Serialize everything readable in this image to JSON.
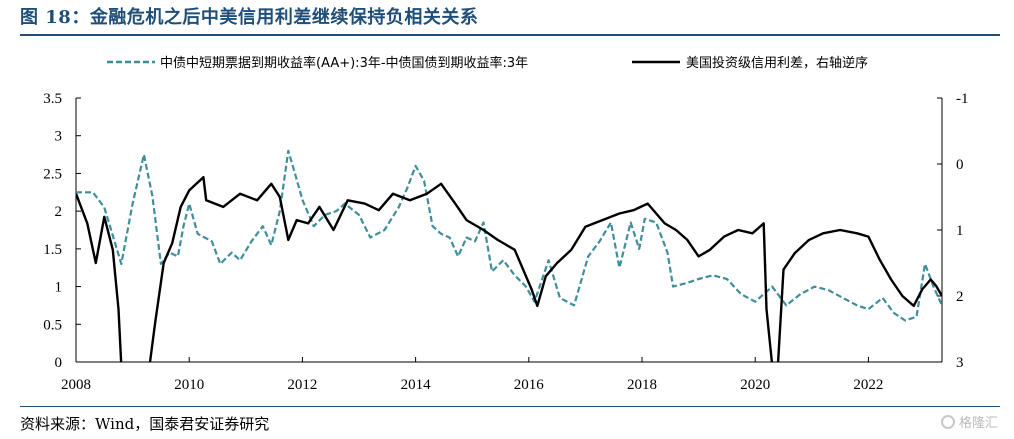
{
  "figure": {
    "title": "图 18：金融危机之后中美信用利差继续保持负相关关系",
    "source": "资料来源：Wind，国泰君安证券研究",
    "watermark": "格隆汇"
  },
  "chart_data": {
    "type": "line",
    "x_ticks": [
      "2008",
      "2010",
      "2012",
      "2014",
      "2016",
      "2018",
      "2020",
      "2022"
    ],
    "xlim": [
      2008.0,
      2023.3
    ],
    "y_left": {
      "ylim": [
        0,
        3.5
      ],
      "ticks": [
        "0",
        "0.5",
        "1",
        "1.5",
        "2",
        "2.5",
        "3",
        "3.5"
      ]
    },
    "y_right": {
      "ylim": [
        -1,
        3
      ],
      "inverted": true,
      "ticks": [
        "-1",
        "0",
        "1",
        "2",
        "3"
      ]
    },
    "legend_position": "top",
    "grid": false,
    "series": [
      {
        "name": "中债中短期票据到期收益率(AA+):3年-中债国债到期收益率:3年",
        "axis": "left",
        "style": "dashed",
        "color": "#3e8e9b",
        "points": [
          [
            2008.0,
            2.25
          ],
          [
            2008.3,
            2.25
          ],
          [
            2008.5,
            2.05
          ],
          [
            2008.6,
            1.8
          ],
          [
            2008.8,
            1.3
          ],
          [
            2009.0,
            2.1
          ],
          [
            2009.2,
            2.75
          ],
          [
            2009.35,
            2.2
          ],
          [
            2009.5,
            1.3
          ],
          [
            2009.65,
            1.45
          ],
          [
            2009.8,
            1.4
          ],
          [
            2009.9,
            1.8
          ],
          [
            2010.0,
            2.1
          ],
          [
            2010.15,
            1.7
          ],
          [
            2010.4,
            1.6
          ],
          [
            2010.55,
            1.3
          ],
          [
            2010.75,
            1.45
          ],
          [
            2010.9,
            1.35
          ],
          [
            2011.1,
            1.6
          ],
          [
            2011.3,
            1.8
          ],
          [
            2011.45,
            1.55
          ],
          [
            2011.6,
            2.0
          ],
          [
            2011.75,
            2.8
          ],
          [
            2011.85,
            2.55
          ],
          [
            2012.0,
            2.15
          ],
          [
            2012.2,
            1.8
          ],
          [
            2012.4,
            1.95
          ],
          [
            2012.6,
            2.0
          ],
          [
            2012.75,
            2.1
          ],
          [
            2013.0,
            1.95
          ],
          [
            2013.2,
            1.65
          ],
          [
            2013.45,
            1.75
          ],
          [
            2013.7,
            2.05
          ],
          [
            2013.85,
            2.3
          ],
          [
            2014.0,
            2.6
          ],
          [
            2014.15,
            2.4
          ],
          [
            2014.3,
            1.8
          ],
          [
            2014.45,
            1.7
          ],
          [
            2014.6,
            1.65
          ],
          [
            2014.75,
            1.4
          ],
          [
            2014.9,
            1.65
          ],
          [
            2015.05,
            1.6
          ],
          [
            2015.2,
            1.85
          ],
          [
            2015.35,
            1.2
          ],
          [
            2015.55,
            1.35
          ],
          [
            2015.75,
            1.15
          ],
          [
            2015.95,
            1.0
          ],
          [
            2016.1,
            0.8
          ],
          [
            2016.35,
            1.35
          ],
          [
            2016.55,
            0.85
          ],
          [
            2016.8,
            0.75
          ],
          [
            2017.05,
            1.4
          ],
          [
            2017.25,
            1.6
          ],
          [
            2017.45,
            1.85
          ],
          [
            2017.6,
            1.25
          ],
          [
            2017.8,
            1.85
          ],
          [
            2017.95,
            1.5
          ],
          [
            2018.05,
            1.9
          ],
          [
            2018.25,
            1.85
          ],
          [
            2018.45,
            1.45
          ],
          [
            2018.55,
            1.0
          ],
          [
            2018.8,
            1.05
          ],
          [
            2019.0,
            1.1
          ],
          [
            2019.25,
            1.15
          ],
          [
            2019.5,
            1.1
          ],
          [
            2019.75,
            0.9
          ],
          [
            2020.0,
            0.8
          ],
          [
            2020.3,
            1.0
          ],
          [
            2020.55,
            0.75
          ],
          [
            2020.8,
            0.9
          ],
          [
            2021.05,
            1.0
          ],
          [
            2021.3,
            0.95
          ],
          [
            2021.55,
            0.85
          ],
          [
            2021.8,
            0.75
          ],
          [
            2022.0,
            0.7
          ],
          [
            2022.25,
            0.85
          ],
          [
            2022.45,
            0.65
          ],
          [
            2022.65,
            0.55
          ],
          [
            2022.85,
            0.6
          ],
          [
            2023.0,
            1.3
          ],
          [
            2023.15,
            1.0
          ],
          [
            2023.3,
            0.75
          ]
        ]
      },
      {
        "name": "美国投资级信用利差，右轴逆序",
        "axis": "right",
        "style": "solid",
        "color": "#000000",
        "points": [
          [
            2008.0,
            0.45
          ],
          [
            2008.2,
            0.9
          ],
          [
            2008.35,
            1.5
          ],
          [
            2008.5,
            0.8
          ],
          [
            2008.65,
            1.3
          ],
          [
            2008.75,
            2.2
          ],
          [
            2008.8,
            3.05
          ],
          [
            2009.3,
            3.05
          ],
          [
            2009.4,
            2.4
          ],
          [
            2009.55,
            1.5
          ],
          [
            2009.7,
            1.2
          ],
          [
            2009.85,
            0.65
          ],
          [
            2010.0,
            0.4
          ],
          [
            2010.25,
            0.2
          ],
          [
            2010.3,
            0.55
          ],
          [
            2010.6,
            0.65
          ],
          [
            2010.9,
            0.45
          ],
          [
            2011.2,
            0.55
          ],
          [
            2011.45,
            0.3
          ],
          [
            2011.6,
            0.5
          ],
          [
            2011.75,
            1.15
          ],
          [
            2011.9,
            0.85
          ],
          [
            2012.1,
            0.9
          ],
          [
            2012.3,
            0.65
          ],
          [
            2012.55,
            1.0
          ],
          [
            2012.8,
            0.55
          ],
          [
            2013.1,
            0.6
          ],
          [
            2013.35,
            0.7
          ],
          [
            2013.6,
            0.45
          ],
          [
            2013.9,
            0.55
          ],
          [
            2014.2,
            0.45
          ],
          [
            2014.45,
            0.3
          ],
          [
            2014.7,
            0.6
          ],
          [
            2014.9,
            0.85
          ],
          [
            2015.2,
            1.0
          ],
          [
            2015.45,
            1.15
          ],
          [
            2015.75,
            1.3
          ],
          [
            2016.05,
            1.9
          ],
          [
            2016.15,
            2.15
          ],
          [
            2016.3,
            1.7
          ],
          [
            2016.5,
            1.5
          ],
          [
            2016.75,
            1.3
          ],
          [
            2017.0,
            0.95
          ],
          [
            2017.3,
            0.85
          ],
          [
            2017.6,
            0.75
          ],
          [
            2017.85,
            0.7
          ],
          [
            2018.1,
            0.6
          ],
          [
            2018.4,
            0.9
          ],
          [
            2018.6,
            1.0
          ],
          [
            2018.8,
            1.15
          ],
          [
            2019.0,
            1.4
          ],
          [
            2019.2,
            1.3
          ],
          [
            2019.45,
            1.1
          ],
          [
            2019.7,
            1.0
          ],
          [
            2019.95,
            1.05
          ],
          [
            2020.15,
            0.9
          ],
          [
            2020.2,
            2.2
          ],
          [
            2020.3,
            3.05
          ],
          [
            2020.4,
            3.05
          ],
          [
            2020.5,
            1.6
          ],
          [
            2020.7,
            1.35
          ],
          [
            2020.95,
            1.15
          ],
          [
            2021.2,
            1.05
          ],
          [
            2021.5,
            1.0
          ],
          [
            2021.8,
            1.05
          ],
          [
            2022.0,
            1.1
          ],
          [
            2022.2,
            1.45
          ],
          [
            2022.4,
            1.75
          ],
          [
            2022.6,
            2.0
          ],
          [
            2022.8,
            2.15
          ],
          [
            2022.95,
            1.9
          ],
          [
            2023.1,
            1.75
          ],
          [
            2023.2,
            1.85
          ],
          [
            2023.3,
            2.0
          ]
        ]
      }
    ]
  }
}
